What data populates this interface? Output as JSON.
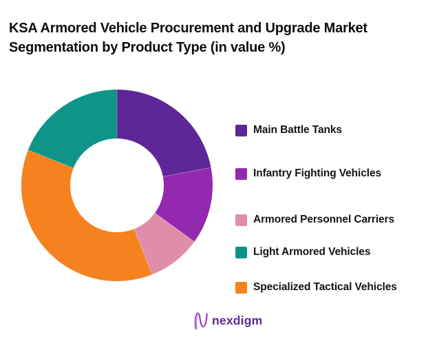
{
  "header": {
    "line1": "KSA Armored Vehicle Procurement and Upgrade Market",
    "line2": "Segmentation by Product Type (in value %)"
  },
  "chart_data": {
    "type": "pie",
    "subtype": "donut",
    "title": "KSA Armored Vehicle Procurement and Upgrade Market Segmentation by Product Type (in value %)",
    "units": "value %",
    "data_labels_shown": false,
    "start_angle_deg": 0,
    "direction": "clockwise",
    "inner_radius_ratio": 0.49,
    "legend_position": "right",
    "segments": [
      {
        "label": "Main Battle Tanks",
        "value_pct": 22,
        "color": "#5E2697"
      },
      {
        "label": "Infantry Fighting Vehicles",
        "value_pct": 13,
        "color": "#9429B0"
      },
      {
        "label": "Armored Personnel Carriers",
        "value_pct": 9,
        "color": "#DF8DAA"
      },
      {
        "label": "Specialized Tactical Vehicles",
        "value_pct": 37,
        "color": "#F5821F"
      },
      {
        "label": "Light Armored Vehicles",
        "value_pct": 19,
        "color": "#0E9488"
      }
    ],
    "legend_items": [
      {
        "label": "Main Battle Tanks",
        "color": "#5E2697"
      },
      {
        "label": "Infantry Fighting Vehicles",
        "color": "#9429B0"
      },
      {
        "label": "Armored Personnel Carriers",
        "color": "#DF8DAA"
      },
      {
        "label": "Light Armored Vehicles",
        "color": "#0E9488"
      },
      {
        "label": "Specialized Tactical Vehicles",
        "color": "#F5821F"
      }
    ]
  },
  "logo": {
    "text": "nexdigm",
    "color": "#5A2B8E"
  }
}
